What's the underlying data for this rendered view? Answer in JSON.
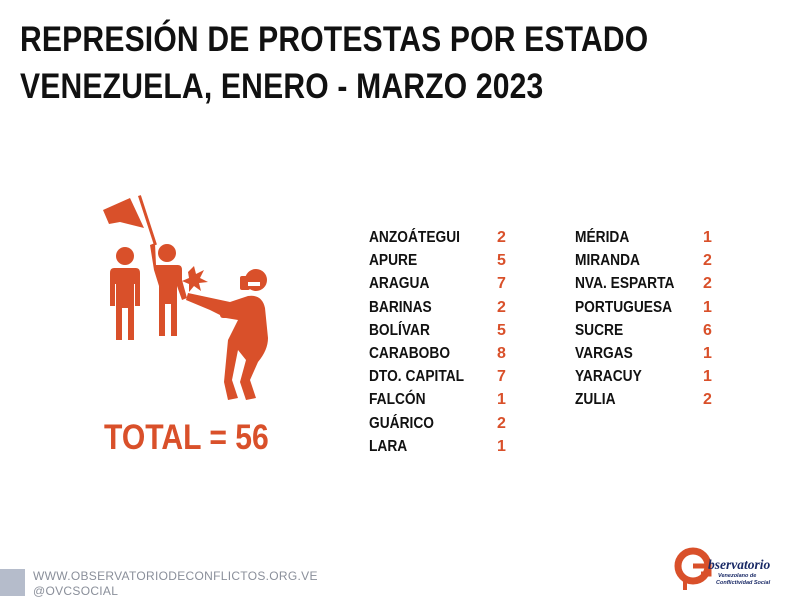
{
  "title": {
    "line1": "REPRESIÓN DE PROTESTAS POR ESTADO",
    "line2": "VENEZUELA, ENERO - MARZO 2023"
  },
  "total_label": "TOTAL =  56",
  "states_left": [
    {
      "name": "ANZOÁTEGUI",
      "count": "2"
    },
    {
      "name": "APURE",
      "count": "5"
    },
    {
      "name": "ARAGUA",
      "count": "7"
    },
    {
      "name": "BARINAS",
      "count": "2"
    },
    {
      "name": "BOLÍVAR",
      "count": "5"
    },
    {
      "name": "CARABOBO",
      "count": "8"
    },
    {
      "name": "DTO. CAPITAL",
      "count": "7"
    },
    {
      "name": "FALCÓN",
      "count": "1"
    },
    {
      "name": "GUÁRICO",
      "count": "2"
    },
    {
      "name": "LARA",
      "count": "1"
    }
  ],
  "states_right": [
    {
      "name": "MÉRIDA",
      "count": "1"
    },
    {
      "name": "MIRANDA",
      "count": "2"
    },
    {
      "name": "NVA. ESPARTA",
      "count": "2"
    },
    {
      "name": "PORTUGUESA",
      "count": "1"
    },
    {
      "name": "SUCRE",
      "count": "6"
    },
    {
      "name": "VARGAS",
      "count": "1"
    },
    {
      "name": "YARACUY",
      "count": "1"
    },
    {
      "name": "ZULIA",
      "count": "2"
    }
  ],
  "footer": {
    "website": "WWW.OBSERVATORIODECONFLICTOS.ORG.VE",
    "social": "@OVCSOCIAL"
  },
  "logo": {
    "title": "bservatorio",
    "sub1": "Venezolano de",
    "sub2": "Conflictividad Social"
  },
  "colors": {
    "accent": "#d9502a",
    "text": "#111111",
    "footer_text": "#8a8f9a",
    "logo_navy": "#1a2a66"
  },
  "icon": "protest-repression-illustration"
}
